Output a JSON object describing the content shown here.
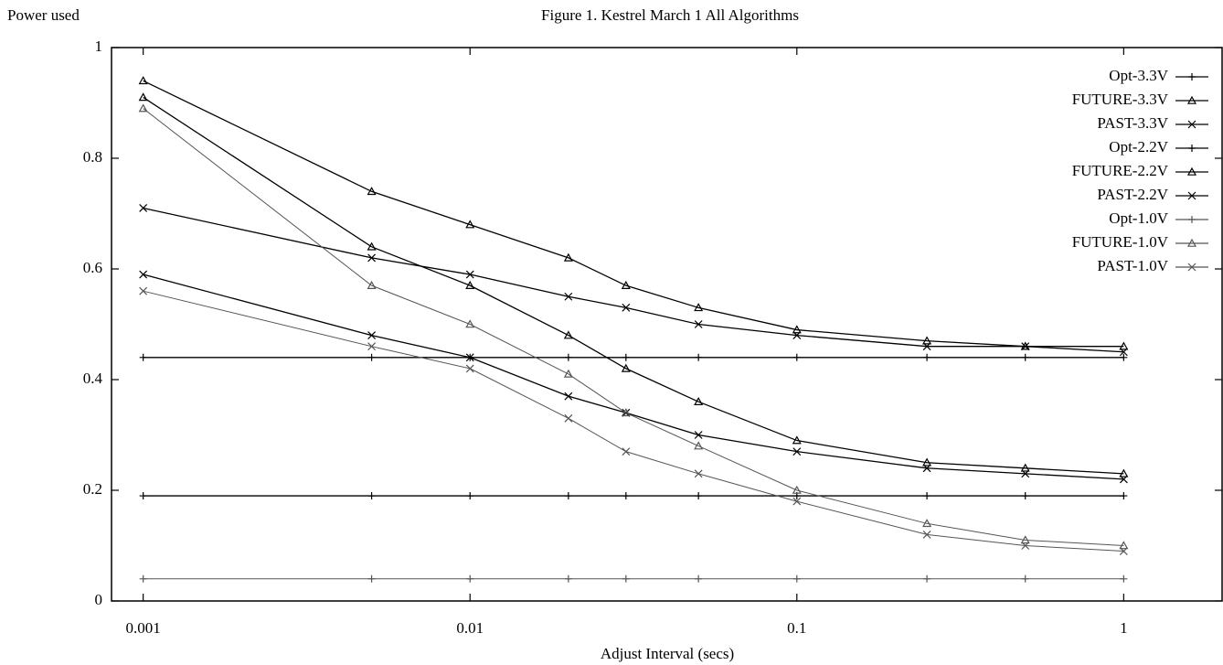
{
  "chart_data": {
    "type": "line",
    "title": "Figure 1. Kestrel March 1 All Algorithms",
    "y_label": "Power used",
    "x_label": "Adjust Interval (secs)",
    "x_scale": "log",
    "x": [
      0.001,
      0.005,
      0.01,
      0.02,
      0.03,
      0.05,
      0.1,
      0.25,
      0.5,
      1
    ],
    "xlim": [
      0.0008,
      2
    ],
    "xticks": [
      0.001,
      0.01,
      0.1,
      1
    ],
    "ylim": [
      0,
      1
    ],
    "yticks": [
      0,
      0.2,
      0.4,
      0.6,
      0.8,
      1
    ],
    "legend": "top-right",
    "series": [
      {
        "name": "Opt-3.3V",
        "color": "#000000",
        "marker": "plus",
        "values": [
          0.44,
          0.44,
          0.44,
          0.44,
          0.44,
          0.44,
          0.44,
          0.44,
          0.44,
          0.44
        ]
      },
      {
        "name": "FUTURE-3.3V",
        "color": "#000000",
        "marker": "triangle",
        "values": [
          0.94,
          0.74,
          0.68,
          0.62,
          0.57,
          0.53,
          0.49,
          0.47,
          0.46,
          0.46
        ]
      },
      {
        "name": "PAST-3.3V",
        "color": "#000000",
        "marker": "cross",
        "values": [
          0.71,
          0.62,
          0.59,
          0.55,
          0.53,
          0.5,
          0.48,
          0.46,
          0.46,
          0.45
        ]
      },
      {
        "name": "Opt-2.2V",
        "color": "#000000",
        "marker": "plus",
        "values": [
          0.19,
          0.19,
          0.19,
          0.19,
          0.19,
          0.19,
          0.19,
          0.19,
          0.19,
          0.19
        ]
      },
      {
        "name": "FUTURE-2.2V",
        "color": "#000000",
        "marker": "triangle",
        "values": [
          0.91,
          0.64,
          0.57,
          0.48,
          0.42,
          0.36,
          0.29,
          0.25,
          0.24,
          0.23
        ]
      },
      {
        "name": "PAST-2.2V",
        "color": "#000000",
        "marker": "cross",
        "values": [
          0.59,
          0.48,
          0.44,
          0.37,
          0.34,
          0.3,
          0.27,
          0.24,
          0.23,
          0.22
        ]
      },
      {
        "name": "Opt-1.0V",
        "color": "#555555",
        "marker": "plus",
        "values": [
          0.04,
          0.04,
          0.04,
          0.04,
          0.04,
          0.04,
          0.04,
          0.04,
          0.04,
          0.04
        ]
      },
      {
        "name": "FUTURE-1.0V",
        "color": "#555555",
        "marker": "triangle",
        "values": [
          0.89,
          0.57,
          0.5,
          0.41,
          0.34,
          0.28,
          0.2,
          0.14,
          0.11,
          0.1
        ]
      },
      {
        "name": "PAST-1.0V",
        "color": "#555555",
        "marker": "cross",
        "values": [
          0.56,
          0.46,
          0.42,
          0.33,
          0.27,
          0.23,
          0.18,
          0.12,
          0.1,
          0.09
        ]
      }
    ]
  }
}
